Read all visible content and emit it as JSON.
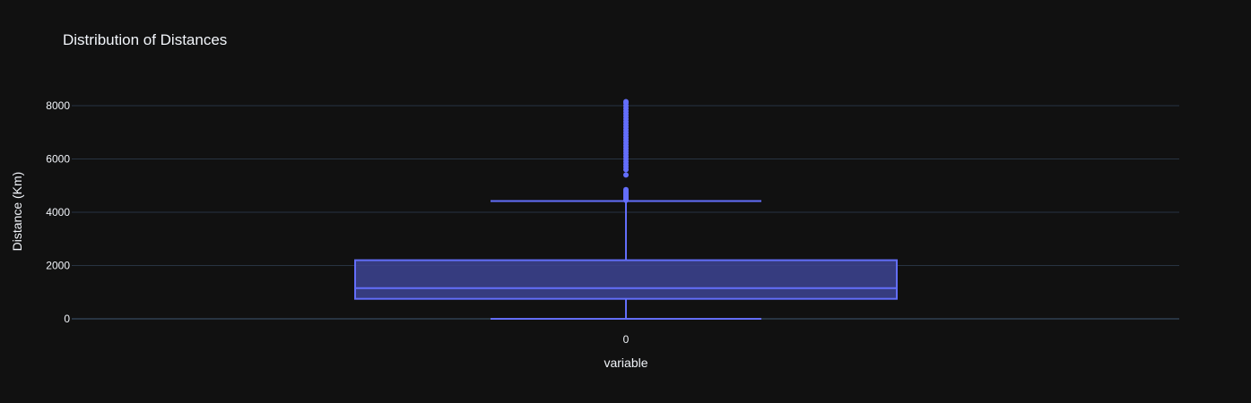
{
  "chart_data": {
    "type": "box",
    "title": "Distribution of Distances",
    "xlabel": "variable",
    "ylabel": "Distance (Km)",
    "categories": [
      "0"
    ],
    "ylim": [
      -300,
      9000
    ],
    "yticks": [
      0,
      2000,
      4000,
      6000,
      8000
    ],
    "ytick_labels": [
      "0",
      "2000",
      "4000",
      "6000",
      "8000"
    ],
    "grid": true,
    "series": [
      {
        "category": "0",
        "min": 0,
        "q1": 750,
        "median": 1150,
        "q3": 2200,
        "max": 4420,
        "outliers": [
          4450,
          4500,
          4550,
          4600,
          4650,
          4700,
          4750,
          4800,
          4850,
          5400,
          5600,
          5700,
          5800,
          5900,
          6000,
          6100,
          6200,
          6300,
          6400,
          6500,
          6600,
          6700,
          6800,
          6900,
          7000,
          7100,
          7200,
          7300,
          7400,
          7500,
          7600,
          7700,
          7800,
          7900,
          8000,
          8100,
          8150
        ]
      }
    ],
    "colors": {
      "box_line": "#636efa",
      "box_fill": "#3b418c",
      "background": "#111111",
      "grid": "#283442",
      "text": "#f2f5fa"
    }
  }
}
